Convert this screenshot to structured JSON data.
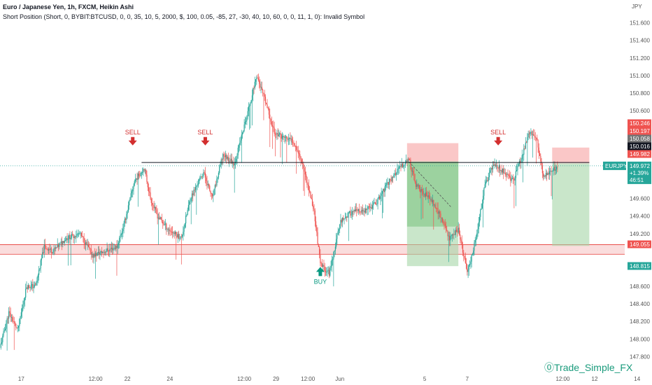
{
  "header": {
    "line1": "Euro / Japanese Yen, 1h, FXCM, Heikin Ashi",
    "line2": "Short Position (Short, 0, BYBIT:BTCUSD, 0, 0, 35, 10, 5, 2000, $, 100, 0.05, -85, 27, -30, 40, 10, 60, 0, 0, 11, 1, 0): Invalid Symbol"
  },
  "watermark": "Trade_Simple_FX",
  "colors": {
    "up": "#26a69a",
    "down": "#ef5350",
    "text": "#131722",
    "axis_text": "#555555",
    "zone_fill": "#f7c6c6",
    "zone_line": "#e53935",
    "resistance_line": "#131722",
    "profit_fill": "#a5d6a7",
    "loss_fill": "#f8b4b4",
    "arrow_red": "#d32f2f",
    "arrow_green": "#089981"
  },
  "chart_data": {
    "type": "candlestick",
    "chart_style": "Heikin Ashi",
    "symbol": "Euro / Japanese Yen",
    "interval": "1h",
    "source": "FXCM",
    "currency": "JPY",
    "grid": false,
    "ylim": [
      147.62,
      151.86
    ],
    "y_ticks": [
      {
        "value": 151.6,
        "label": "151.600"
      },
      {
        "value": 151.4,
        "label": "151.400"
      },
      {
        "value": 151.2,
        "label": "151.200"
      },
      {
        "value": 151.0,
        "label": "151.000"
      },
      {
        "value": 150.8,
        "label": "150.800"
      },
      {
        "value": 150.6,
        "label": "150.600"
      },
      {
        "value": 149.6,
        "label": "149.600"
      },
      {
        "value": 149.4,
        "label": "149.400"
      },
      {
        "value": 149.2,
        "label": "149.200"
      },
      {
        "value": 148.6,
        "label": "148.600"
      },
      {
        "value": 148.4,
        "label": "148.400"
      },
      {
        "value": 148.2,
        "label": "148.200"
      },
      {
        "value": 148.0,
        "label": "148.000"
      },
      {
        "value": 147.8,
        "label": "147.800"
      }
    ],
    "x_ticks": [
      {
        "label": "17",
        "date": "May 17 00:00"
      },
      {
        "label": "12:00",
        "date": "May 20 12:00"
      },
      {
        "label": "22",
        "date": "May 22 00:00"
      },
      {
        "label": "24",
        "date": "May 24 00:00"
      },
      {
        "label": "12:00",
        "date": "May 27 12:00"
      },
      {
        "label": "29",
        "date": "May 29 00:00"
      },
      {
        "label": "12:00",
        "date": "May 30 12:00"
      },
      {
        "label": "Jun",
        "date": "Jun 1 00:00"
      },
      {
        "label": "5",
        "date": "Jun 5 00:00"
      },
      {
        "label": "7",
        "date": "Jun 7 00:00"
      },
      {
        "label": "12:00",
        "date": "Jun 10 12:00"
      },
      {
        "label": "12",
        "date": "Jun 12 00:00"
      },
      {
        "label": "14",
        "date": "Jun 14 00:00"
      }
    ],
    "x_time": {
      "start": "May 16 00:00",
      "end": "Jun 14 10:00",
      "unit": "hours since May 16 00:00",
      "span": 706
    },
    "current_price": {
      "symbol": "EURJPY",
      "price": 149.972,
      "price_label": "149.972",
      "change": "+1.39%",
      "countdown": "46:51"
    },
    "price_labels": [
      {
        "value": 150.246,
        "label": "150.246",
        "color": "#ef5350"
      },
      {
        "value": 150.197,
        "label": "150.197",
        "color": "#ef5350"
      },
      {
        "value": 150.058,
        "label": "150.058",
        "color": "#757575"
      },
      {
        "value": 150.016,
        "label": "150.016",
        "color": "#131722"
      },
      {
        "value": 149.982,
        "label": "149.982",
        "color": "#ef5350"
      },
      {
        "value": 149.055,
        "label": "149.055",
        "color": "#ef5350"
      },
      {
        "value": 148.815,
        "label": "148.815",
        "color": "#26a69a"
      }
    ],
    "resistance_line": {
      "value": 150.01,
      "from_hour": 160,
      "to_hour": 666
    },
    "support_zone": {
      "top": 149.075,
      "bottom": 148.965
    },
    "positions": [
      {
        "side": "short",
        "from_hour": 460,
        "to_hour": 518,
        "stop": 150.23,
        "entry": 150.02,
        "target": 148.83
      },
      {
        "side": "short",
        "from_hour": 624,
        "to_hour": 666,
        "stop": 150.18,
        "entry": 150.0,
        "target": 149.06
      }
    ],
    "annotations": [
      {
        "text": "SELL",
        "kind": "sell",
        "hour": 150,
        "value": 150.22
      },
      {
        "text": "SELL",
        "kind": "sell",
        "hour": 232,
        "value": 150.22
      },
      {
        "text": "SELL",
        "kind": "sell",
        "hour": 563,
        "value": 150.22
      },
      {
        "text": "BUY",
        "kind": "buy",
        "hour": 362,
        "value": 148.82
      }
    ],
    "price_path": [
      [
        0,
        147.9
      ],
      [
        10,
        148.3
      ],
      [
        20,
        148.1
      ],
      [
        30,
        148.6
      ],
      [
        40,
        148.6
      ],
      [
        50,
        149.05
      ],
      [
        60,
        149.0
      ],
      [
        75,
        149.15
      ],
      [
        90,
        149.2
      ],
      [
        105,
        148.95
      ],
      [
        118,
        149.0
      ],
      [
        132,
        149.05
      ],
      [
        140,
        149.3
      ],
      [
        152,
        149.8
      ],
      [
        163,
        149.95
      ],
      [
        170,
        149.6
      ],
      [
        178,
        149.4
      ],
      [
        190,
        149.25
      ],
      [
        205,
        149.15
      ],
      [
        215,
        149.6
      ],
      [
        230,
        149.9
      ],
      [
        240,
        149.6
      ],
      [
        252,
        150.1
      ],
      [
        265,
        150.0
      ],
      [
        278,
        150.5
      ],
      [
        290,
        151.0
      ],
      [
        300,
        150.7
      ],
      [
        310,
        150.35
      ],
      [
        320,
        150.3
      ],
      [
        332,
        150.25
      ],
      [
        342,
        150.0
      ],
      [
        355,
        149.45
      ],
      [
        362,
        148.85
      ],
      [
        372,
        148.75
      ],
      [
        385,
        149.35
      ],
      [
        398,
        149.45
      ],
      [
        412,
        149.45
      ],
      [
        425,
        149.55
      ],
      [
        440,
        149.8
      ],
      [
        452,
        149.95
      ],
      [
        462,
        150.05
      ],
      [
        470,
        149.75
      ],
      [
        480,
        149.65
      ],
      [
        490,
        149.55
      ],
      [
        500,
        149.35
      ],
      [
        508,
        149.15
      ],
      [
        518,
        149.25
      ],
      [
        528,
        148.75
      ],
      [
        538,
        149.15
      ],
      [
        548,
        149.75
      ],
      [
        558,
        150.0
      ],
      [
        570,
        149.9
      ],
      [
        580,
        149.8
      ],
      [
        592,
        150.15
      ],
      [
        598,
        150.35
      ],
      [
        606,
        150.3
      ],
      [
        614,
        149.85
      ],
      [
        624,
        149.92
      ],
      [
        630,
        149.97
      ]
    ]
  }
}
